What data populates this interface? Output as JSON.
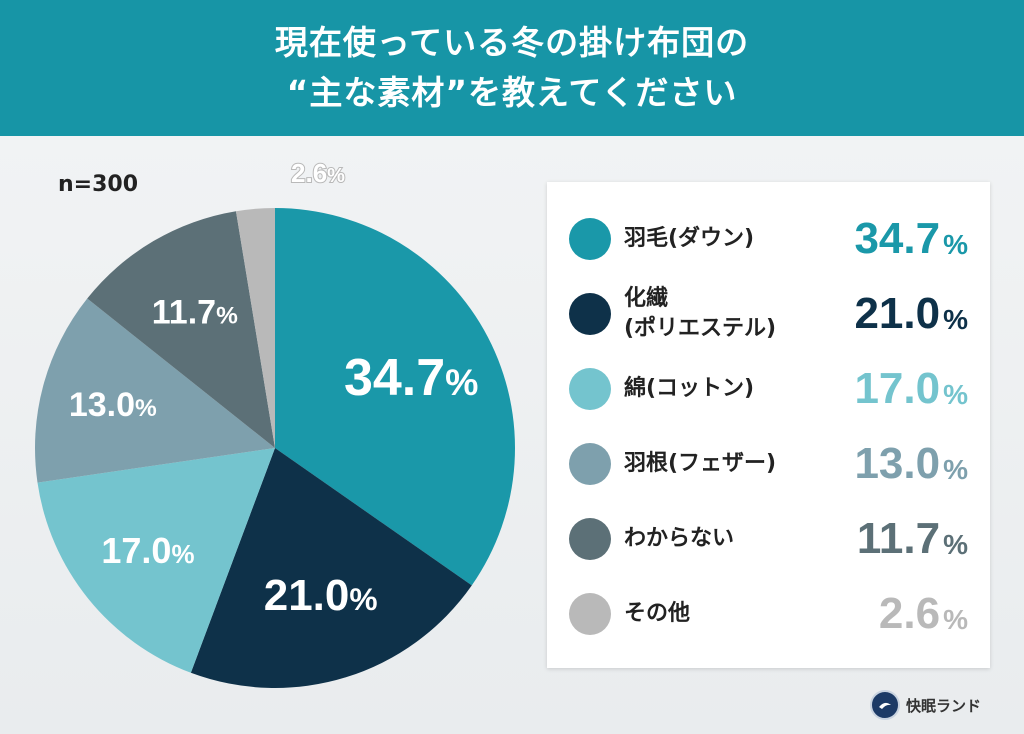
{
  "header": {
    "line1": "現在使っている冬の掛け布団の",
    "line2": "“主な素材”を教えてください"
  },
  "sample_size": "n=300",
  "brand": {
    "name": "快眠ランド",
    "logo_icon": "brand-logo-icon"
  },
  "chart_data": {
    "type": "pie",
    "title": "現在使っている冬の掛け布団の“主な素材”を教えてください",
    "unit": "%",
    "slices": [
      {
        "label": "羽毛(ダウン)",
        "value": 34.7,
        "display": "34.7",
        "color": "#1a98a9",
        "text_color": "#1a98a9"
      },
      {
        "label": "化繊(ポリエステル)",
        "value": 21.0,
        "display": "21.0",
        "color": "#0e3149",
        "text_color": "#0e3149"
      },
      {
        "label": "綿(コットン)",
        "value": 17.0,
        "display": "17.0",
        "color": "#74c4ce",
        "text_color": "#74c4ce"
      },
      {
        "label": "羽根(フェザー)",
        "value": 13.0,
        "display": "13.0",
        "color": "#7ea0ad",
        "text_color": "#7ea0ad"
      },
      {
        "label": "わからない",
        "value": 11.7,
        "display": "11.7",
        "color": "#5c7077",
        "text_color": "#5c7077"
      },
      {
        "label": "その他",
        "value": 2.6,
        "display": "2.6",
        "color": "#b9b9b9",
        "text_color": "#b9b9b9"
      }
    ]
  }
}
